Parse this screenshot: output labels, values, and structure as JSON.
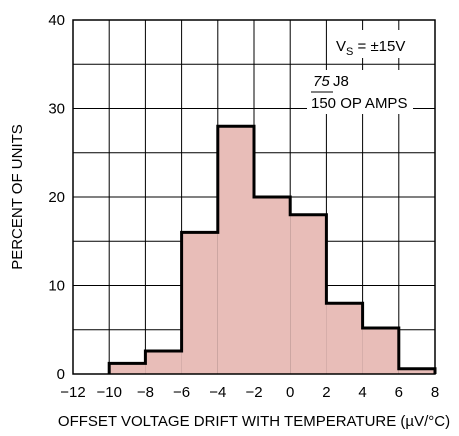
{
  "chart_data": {
    "type": "histogram",
    "title": "",
    "xlabel": "OFFSET VOLTAGE DRIFT WITH TEMPERATURE (µV/°C)",
    "ylabel": "PERCENT OF UNITS",
    "xlim": [
      -12,
      8
    ],
    "ylim": [
      0,
      40
    ],
    "x_ticks": [
      "−12",
      "−10",
      "−8",
      "−6",
      "−4",
      "−2",
      "0",
      "2",
      "4",
      "6",
      "8"
    ],
    "y_ticks": [
      "0",
      "10",
      "20",
      "30",
      "40"
    ],
    "grid": true,
    "bins": [
      {
        "x0": -10,
        "x1": -8,
        "value": 1.2
      },
      {
        "x0": -8,
        "x1": -6,
        "value": 2.6
      },
      {
        "x0": -6,
        "x1": -4,
        "value": 16
      },
      {
        "x0": -4,
        "x1": -2,
        "value": 28
      },
      {
        "x0": -2,
        "x1": 0,
        "value": 20
      },
      {
        "x0": 0,
        "x1": 2,
        "value": 18
      },
      {
        "x0": 2,
        "x1": 4,
        "value": 8
      },
      {
        "x0": 4,
        "x1": 6,
        "value": 5.2
      },
      {
        "x0": 6,
        "x1": 8,
        "value": 0.6
      }
    ],
    "bar_fill": "#e8bdb8",
    "annotations": {
      "vs_main": "V",
      "vs_sub": "S",
      "vs_rest": " = ±15V",
      "count_num": "75",
      "count_num_suffix": " J8",
      "count_den": "150 OP AMPS"
    }
  }
}
